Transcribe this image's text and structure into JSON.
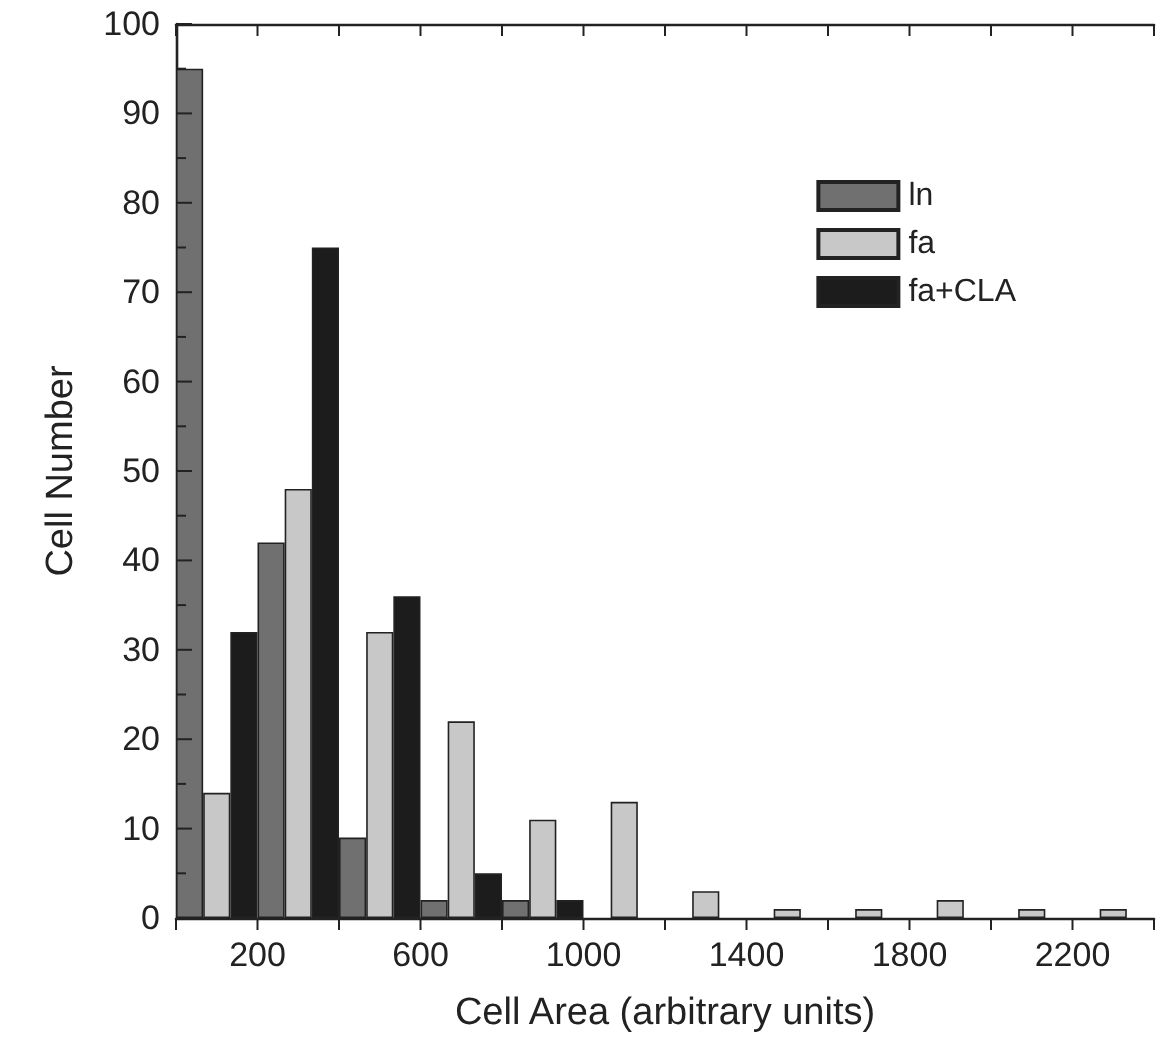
{
  "chart_data": {
    "type": "bar",
    "xlabel": "Cell Area (arbitrary units)",
    "ylabel": "Cell Number",
    "x": [
      100,
      300,
      500,
      700,
      900,
      1100,
      1300,
      1500,
      1700,
      1900,
      2100,
      2300
    ],
    "series": [
      {
        "name": "ln",
        "color": "#707070",
        "values": [
          95,
          42,
          9,
          2,
          2,
          null,
          null,
          null,
          null,
          null,
          null,
          null
        ]
      },
      {
        "name": "fa",
        "color": "#c8c8c8",
        "values": [
          14,
          48,
          32,
          22,
          11,
          13,
          3,
          1,
          1,
          2,
          1,
          1
        ]
      },
      {
        "name": "fa+CLA",
        "color": "#1c1c1c",
        "values": [
          32,
          75,
          36,
          5,
          2,
          null,
          null,
          null,
          null,
          null,
          null,
          null
        ]
      }
    ],
    "xlim": [
      0,
      2400
    ],
    "xticks": [
      {
        "value": 0,
        "label": null
      },
      200,
      {
        "value": 400,
        "label": null
      },
      600,
      {
        "value": 800,
        "label": null
      },
      1000,
      {
        "value": 1200,
        "label": null
      },
      1400,
      {
        "value": 1600,
        "label": null
      },
      1800,
      {
        "value": 2000,
        "label": null
      },
      2200,
      {
        "value": 2400,
        "label": null
      }
    ],
    "ylim": [
      0,
      100
    ],
    "yticks": [
      0,
      {
        "value": 5,
        "label": null
      },
      10,
      {
        "value": 15,
        "label": null
      },
      20,
      {
        "value": 25,
        "label": null
      },
      30,
      {
        "value": 35,
        "label": null
      },
      40,
      {
        "value": 45,
        "label": null
      },
      50,
      {
        "value": 55,
        "label": null
      },
      60,
      {
        "value": 65,
        "label": null
      },
      70,
      {
        "value": 75,
        "label": null
      },
      80,
      {
        "value": 85,
        "label": null
      },
      90,
      {
        "value": 95,
        "label": null
      },
      100
    ],
    "grid": false,
    "legend": "top right"
  }
}
